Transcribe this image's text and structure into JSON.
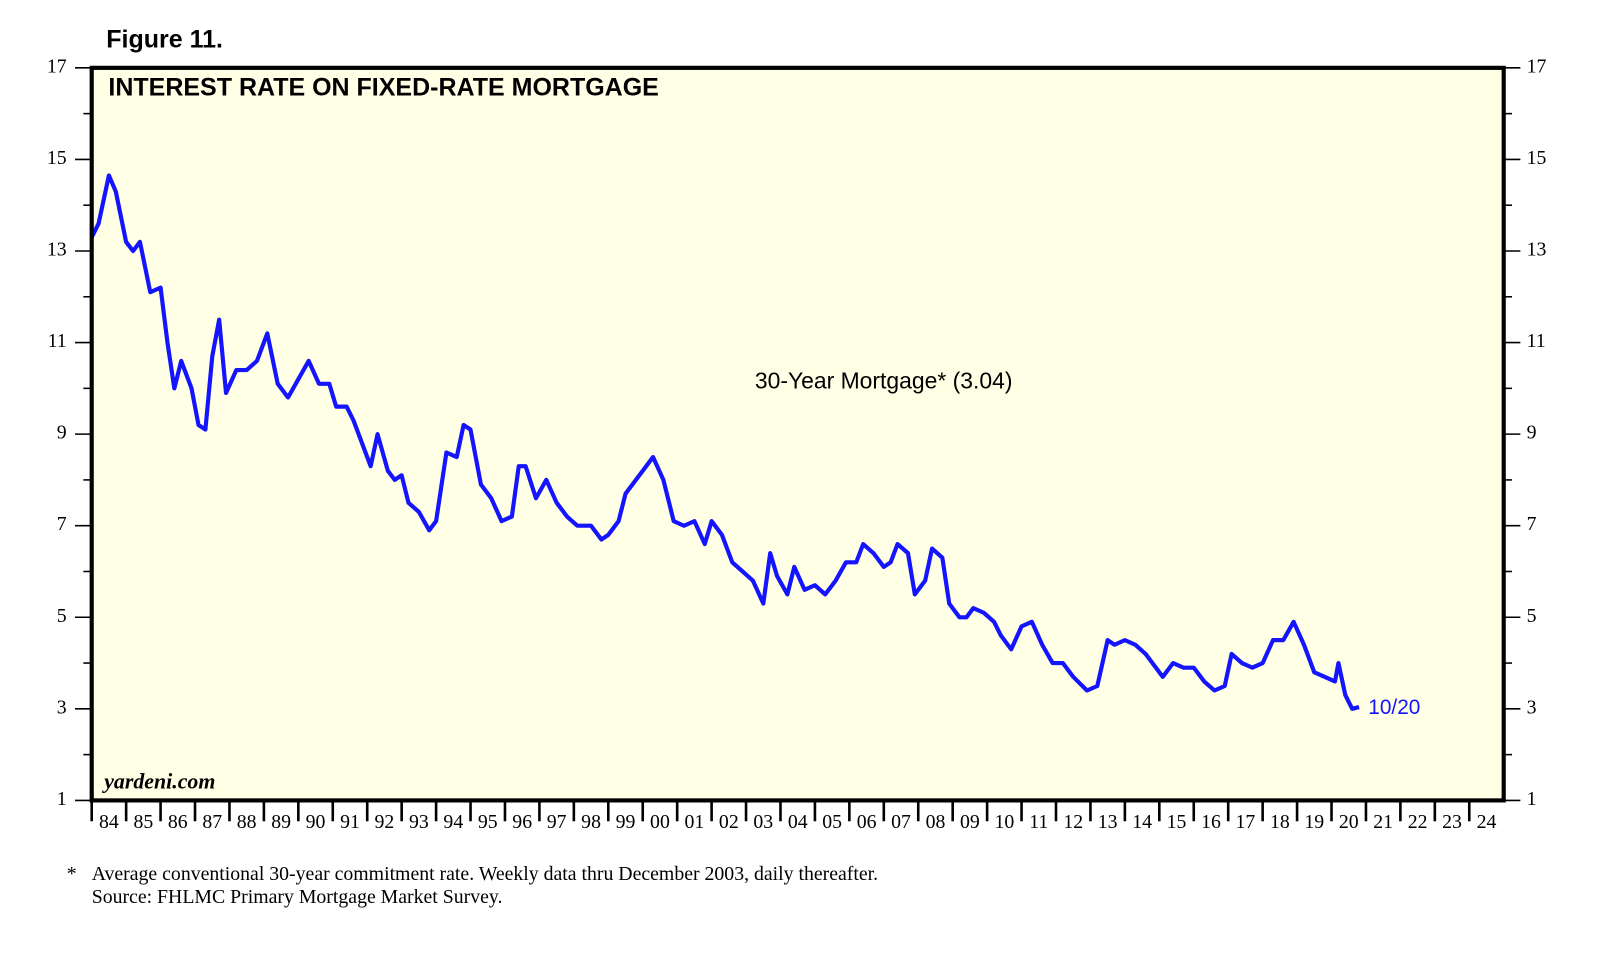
{
  "chart_data": {
    "type": "line",
    "figure_label": "Figure 11.",
    "title": "INTEREST RATE ON FIXED-RATE MORTGAGE",
    "watermark": "yardeni.com",
    "end_label": "10/20",
    "footnote": "*",
    "footnote_text": "Average conventional 30-year commitment rate. Weekly data thru December 2003, daily thereafter.",
    "source": "Source: FHLMC Primary Mortgage Market Survey.",
    "xlim": [
      1984,
      2025
    ],
    "xticks": [
      {
        "value": 1984,
        "label": "84"
      },
      {
        "value": 1985,
        "label": "85"
      },
      {
        "value": 1986,
        "label": "86"
      },
      {
        "value": 1987,
        "label": "87"
      },
      {
        "value": 1988,
        "label": "88"
      },
      {
        "value": 1989,
        "label": "89"
      },
      {
        "value": 1990,
        "label": "90"
      },
      {
        "value": 1991,
        "label": "91"
      },
      {
        "value": 1992,
        "label": "92"
      },
      {
        "value": 1993,
        "label": "93"
      },
      {
        "value": 1994,
        "label": "94"
      },
      {
        "value": 1995,
        "label": "95"
      },
      {
        "value": 1996,
        "label": "96"
      },
      {
        "value": 1997,
        "label": "97"
      },
      {
        "value": 1998,
        "label": "98"
      },
      {
        "value": 1999,
        "label": "99"
      },
      {
        "value": 2000,
        "label": "00"
      },
      {
        "value": 2001,
        "label": "01"
      },
      {
        "value": 2002,
        "label": "02"
      },
      {
        "value": 2003,
        "label": "03"
      },
      {
        "value": 2004,
        "label": "04"
      },
      {
        "value": 2005,
        "label": "05"
      },
      {
        "value": 2006,
        "label": "06"
      },
      {
        "value": 2007,
        "label": "07"
      },
      {
        "value": 2008,
        "label": "08"
      },
      {
        "value": 2009,
        "label": "09"
      },
      {
        "value": 2010,
        "label": "10"
      },
      {
        "value": 2011,
        "label": "11"
      },
      {
        "value": 2012,
        "label": "12"
      },
      {
        "value": 2013,
        "label": "13"
      },
      {
        "value": 2014,
        "label": "14"
      },
      {
        "value": 2015,
        "label": "15"
      },
      {
        "value": 2016,
        "label": "16"
      },
      {
        "value": 2017,
        "label": "17"
      },
      {
        "value": 2018,
        "label": "18"
      },
      {
        "value": 2019,
        "label": "19"
      },
      {
        "value": 2020,
        "label": "20"
      },
      {
        "value": 2021,
        "label": "21"
      },
      {
        "value": 2022,
        "label": "22"
      },
      {
        "value": 2023,
        "label": "23"
      },
      {
        "value": 2024,
        "label": "24"
      }
    ],
    "ylim": [
      1,
      17
    ],
    "yticks": [
      1,
      3,
      5,
      7,
      9,
      11,
      13,
      15,
      17
    ],
    "yminorticks": [
      2,
      4,
      6,
      8,
      10,
      12,
      14,
      16
    ],
    "y2lim": [
      1,
      17
    ],
    "y2ticks": [
      1,
      3,
      5,
      7,
      9,
      11,
      13,
      15,
      17
    ],
    "grid": false,
    "background": "#ffffe6",
    "series": [
      {
        "name": "30-Year Mortgage* (3.04)",
        "color": "#1414ff",
        "x": [
          1984.0,
          1984.2,
          1984.5,
          1984.7,
          1985.0,
          1985.2,
          1985.4,
          1985.7,
          1986.0,
          1986.2,
          1986.4,
          1986.6,
          1986.9,
          1987.1,
          1987.3,
          1987.5,
          1987.7,
          1987.9,
          1988.2,
          1988.5,
          1988.8,
          1989.1,
          1989.4,
          1989.7,
          1990.0,
          1990.3,
          1990.6,
          1990.9,
          1991.1,
          1991.4,
          1991.6,
          1991.9,
          1992.1,
          1992.3,
          1992.6,
          1992.8,
          1993.0,
          1993.2,
          1993.5,
          1993.8,
          1994.0,
          1994.3,
          1994.6,
          1994.8,
          1995.0,
          1995.3,
          1995.6,
          1995.9,
          1996.2,
          1996.4,
          1996.6,
          1996.9,
          1997.2,
          1997.5,
          1997.8,
          1998.1,
          1998.5,
          1998.8,
          1999.0,
          1999.3,
          1999.5,
          1999.7,
          2000.0,
          2000.3,
          2000.6,
          2000.9,
          2001.2,
          2001.5,
          2001.8,
          2002.0,
          2002.3,
          2002.6,
          2002.9,
          2003.2,
          2003.5,
          2003.7,
          2003.9,
          2004.2,
          2004.4,
          2004.7,
          2005.0,
          2005.3,
          2005.6,
          2005.9,
          2006.2,
          2006.4,
          2006.7,
          2007.0,
          2007.2,
          2007.4,
          2007.7,
          2007.9,
          2008.2,
          2008.4,
          2008.7,
          2008.9,
          2009.2,
          2009.4,
          2009.6,
          2009.9,
          2010.2,
          2010.4,
          2010.7,
          2011.0,
          2011.3,
          2011.6,
          2011.9,
          2012.2,
          2012.5,
          2012.9,
          2013.2,
          2013.5,
          2013.7,
          2014.0,
          2014.3,
          2014.6,
          2014.9,
          2015.1,
          2015.4,
          2015.7,
          2016.0,
          2016.3,
          2016.6,
          2016.9,
          2017.1,
          2017.4,
          2017.7,
          2018.0,
          2018.3,
          2018.6,
          2018.9,
          2019.2,
          2019.5,
          2019.8,
          2020.1,
          2020.2,
          2020.4,
          2020.6,
          2020.8
        ],
        "values": [
          13.3,
          13.6,
          14.65,
          14.3,
          13.2,
          13.0,
          13.2,
          12.1,
          12.2,
          11.0,
          10.0,
          10.6,
          10.0,
          9.2,
          9.1,
          10.7,
          11.5,
          9.9,
          10.4,
          10.4,
          10.6,
          11.2,
          10.1,
          9.8,
          10.2,
          10.6,
          10.1,
          10.1,
          9.6,
          9.6,
          9.3,
          8.7,
          8.3,
          9.0,
          8.2,
          8.0,
          8.1,
          7.5,
          7.3,
          6.9,
          7.1,
          8.6,
          8.5,
          9.2,
          9.1,
          7.9,
          7.6,
          7.1,
          7.2,
          8.3,
          8.3,
          7.6,
          8.0,
          7.5,
          7.2,
          7.0,
          7.0,
          6.7,
          6.8,
          7.1,
          7.7,
          7.9,
          8.2,
          8.5,
          8.0,
          7.1,
          7.0,
          7.1,
          6.6,
          7.1,
          6.8,
          6.2,
          6.0,
          5.8,
          5.3,
          6.4,
          5.9,
          5.5,
          6.1,
          5.6,
          5.7,
          5.5,
          5.8,
          6.2,
          6.2,
          6.6,
          6.4,
          6.1,
          6.2,
          6.6,
          6.4,
          5.5,
          5.8,
          6.5,
          6.3,
          5.3,
          5.0,
          5.0,
          5.2,
          5.1,
          4.9,
          4.6,
          4.3,
          4.8,
          4.9,
          4.4,
          4.0,
          4.0,
          3.7,
          3.4,
          3.5,
          4.5,
          4.4,
          4.5,
          4.4,
          4.2,
          3.9,
          3.7,
          4.0,
          3.9,
          3.9,
          3.6,
          3.4,
          3.5,
          4.2,
          4.0,
          3.9,
          4.0,
          4.5,
          4.5,
          4.9,
          4.4,
          3.8,
          3.7,
          3.6,
          4.0,
          3.3,
          3.0,
          3.04
        ]
      }
    ]
  }
}
